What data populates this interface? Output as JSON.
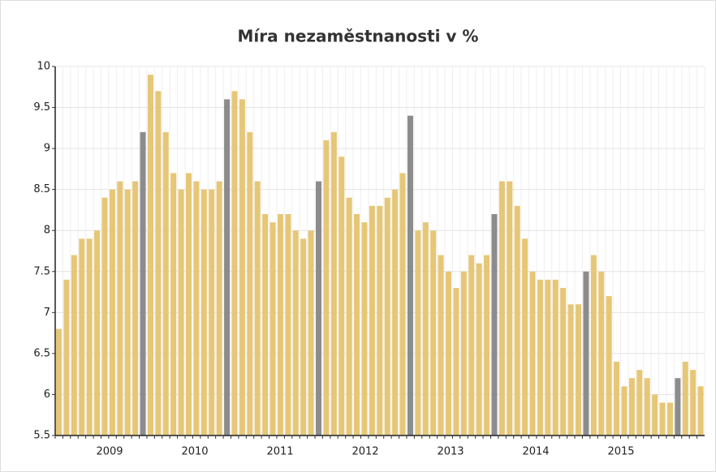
{
  "chart_data": {
    "type": "bar",
    "title": "Míra nezaměstnanosti v %",
    "x_labels": [
      "2009",
      "2010",
      "2011",
      "2012",
      "2013",
      "2014",
      "2015"
    ],
    "values": [
      6.8,
      7.4,
      7.7,
      7.9,
      7.9,
      8.0,
      8.4,
      8.5,
      8.6,
      8.5,
      8.6,
      9.2,
      9.9,
      9.7,
      9.2,
      8.7,
      8.5,
      8.7,
      8.6,
      8.5,
      8.5,
      8.6,
      9.6,
      9.7,
      9.6,
      9.2,
      8.6,
      8.2,
      8.1,
      8.2,
      8.2,
      8.0,
      7.9,
      8.0,
      8.6,
      9.1,
      9.2,
      8.9,
      8.4,
      8.2,
      8.1,
      8.3,
      8.3,
      8.4,
      8.5,
      8.7,
      9.4,
      8.0,
      8.1,
      8.0,
      7.7,
      7.5,
      7.3,
      7.5,
      7.7,
      7.6,
      7.7,
      8.2,
      8.6,
      8.6,
      8.3,
      7.9,
      7.5,
      7.4,
      7.4,
      7.4,
      7.3,
      7.1,
      7.1,
      7.5,
      7.7,
      7.5,
      7.2,
      6.4,
      6.1,
      6.2,
      6.3,
      6.2,
      6.0,
      5.9,
      5.9,
      6.2,
      6.4,
      6.3,
      6.1
    ],
    "colors": [
      "#e6c777",
      "#e6c777",
      "#e6c777",
      "#e6c777",
      "#e6c777",
      "#e6c777",
      "#e6c777",
      "#e6c777",
      "#e6c777",
      "#e6c777",
      "#e6c777",
      "#8c8c8c",
      "#e6c777",
      "#e6c777",
      "#e6c777",
      "#e6c777",
      "#e6c777",
      "#e6c777",
      "#e6c777",
      "#e6c777",
      "#e6c777",
      "#e6c777",
      "#8c8c8c",
      "#e6c777",
      "#e6c777",
      "#e6c777",
      "#e6c777",
      "#e6c777",
      "#e6c777",
      "#e6c777",
      "#e6c777",
      "#e6c777",
      "#e6c777",
      "#e6c777",
      "#8c8c8c",
      "#e6c777",
      "#e6c777",
      "#e6c777",
      "#e6c777",
      "#e6c777",
      "#e6c777",
      "#e6c777",
      "#e6c777",
      "#e6c777",
      "#e6c777",
      "#e6c777",
      "#8c8c8c",
      "#e6c777",
      "#e6c777",
      "#e6c777",
      "#e6c777",
      "#e6c777",
      "#e6c777",
      "#e6c777",
      "#e6c777",
      "#e6c777",
      "#e6c777",
      "#8c8c8c",
      "#e6c777",
      "#e6c777",
      "#e6c777",
      "#e6c777",
      "#e6c777",
      "#e6c777",
      "#e6c777",
      "#e6c777",
      "#e6c777",
      "#e6c777",
      "#e6c777",
      "#8c8c8c",
      "#e6c777",
      "#e6c777",
      "#e6c777",
      "#e6c777",
      "#e6c777",
      "#e6c777",
      "#e6c777",
      "#e6c777",
      "#e6c777",
      "#e6c777",
      "#e6c777",
      "#8c8c8c",
      "#e6c777",
      "#e6c777",
      "#e6c777"
    ],
    "ylim": [
      5.5,
      10
    ],
    "yticks": [
      5.5,
      6,
      6.5,
      7,
      7.5,
      8,
      8.5,
      9,
      9.5,
      10
    ],
    "grid": true
  }
}
